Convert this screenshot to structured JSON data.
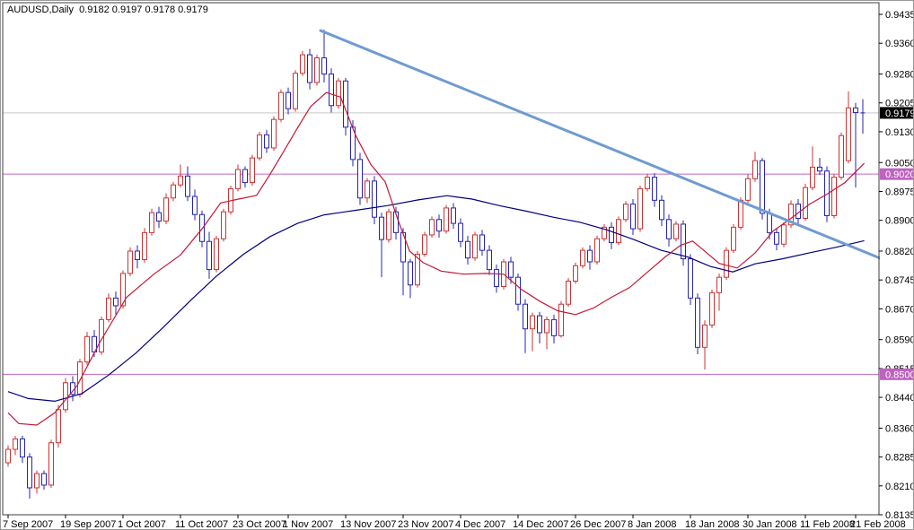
{
  "window": {
    "title": "AUDUSD,Daily  0.9182 0.9197 0.9178 0.9179"
  },
  "colors": {
    "background": "#ffffff",
    "frame": "#3c3c3c",
    "axis_text": "#000000",
    "bull_candle": "#cc3333",
    "bear_candle": "#2424b4",
    "ma_fast": "#c41836",
    "ma_slow": "#000080",
    "trendline": "#6f9bd1",
    "current_price_line": "#c8c8c8",
    "hline": "#c066c0",
    "price_tag_bg": "#000000",
    "price_tag_text": "#ffffff",
    "hline_tag_bg": "#be63be",
    "hline_tag_text": "#ffffff"
  },
  "chart_data": {
    "type": "candlestick",
    "symbol": "AUDUSD",
    "timeframe": "Daily",
    "quote_readout": {
      "open": "0.9182",
      "high": "0.9197",
      "low": "0.9178",
      "close": "0.9179"
    },
    "price_axis": {
      "max": 0.947,
      "min": 0.8135,
      "ticks": [
        0.9435,
        0.936,
        0.928,
        0.9205,
        0.913,
        0.905,
        0.8975,
        0.89,
        0.882,
        0.8745,
        0.867,
        0.859,
        0.8515,
        0.844,
        0.836,
        0.8285,
        0.821,
        0.8135
      ]
    },
    "time_axis": {
      "labels": [
        {
          "text": "7 Sep 2007",
          "day": 0
        },
        {
          "text": "19 Sep 2007",
          "day": 8
        },
        {
          "text": "1 Oct 2007",
          "day": 16
        },
        {
          "text": "11 Oct 2007",
          "day": 24
        },
        {
          "text": "23 Oct 2007",
          "day": 32
        },
        {
          "text": "1 Nov 2007",
          "day": 39
        },
        {
          "text": "13 Nov 2007",
          "day": 47
        },
        {
          "text": "23 Nov 2007",
          "day": 55
        },
        {
          "text": "4 Dec 2007",
          "day": 63
        },
        {
          "text": "14 Dec 2007",
          "day": 71
        },
        {
          "text": "26 Dec 2007",
          "day": 79
        },
        {
          "text": "8 Jan 2008",
          "day": 87
        },
        {
          "text": "18 Jan 2008",
          "day": 95
        },
        {
          "text": "30 Jan 2008",
          "day": 103
        },
        {
          "text": "11 Feb 2008",
          "day": 111
        },
        {
          "text": "21 Feb 2008",
          "day": 118
        }
      ]
    },
    "current_price": {
      "value": 0.9179,
      "label": "0.9179"
    },
    "hlines": [
      {
        "price": 0.902,
        "label": "0.9020"
      },
      {
        "price": 0.85,
        "label": "0.8500"
      }
    ],
    "trendline": {
      "from": {
        "day": 43.5,
        "price": 0.9393
      },
      "to": {
        "day": 122,
        "price": 0.8797
      }
    },
    "candles": [
      [
        0.827,
        0.8315,
        0.826,
        0.8305
      ],
      [
        0.8305,
        0.834,
        0.829,
        0.8332
      ],
      [
        0.8332,
        0.834,
        0.827,
        0.8285
      ],
      [
        0.8285,
        0.8295,
        0.8177,
        0.8205
      ],
      [
        0.8205,
        0.825,
        0.819,
        0.8242
      ],
      [
        0.8242,
        0.825,
        0.82,
        0.8212
      ],
      [
        0.8212,
        0.833,
        0.8205,
        0.8322
      ],
      [
        0.8322,
        0.842,
        0.831,
        0.8408
      ],
      [
        0.8408,
        0.849,
        0.84,
        0.8478
      ],
      [
        0.8478,
        0.8495,
        0.843,
        0.8448
      ],
      [
        0.8448,
        0.854,
        0.844,
        0.8532
      ],
      [
        0.8532,
        0.861,
        0.8525,
        0.8598
      ],
      [
        0.8598,
        0.8615,
        0.8545,
        0.8558
      ],
      [
        0.8558,
        0.865,
        0.855,
        0.8642
      ],
      [
        0.8642,
        0.871,
        0.8635,
        0.8698
      ],
      [
        0.8698,
        0.8715,
        0.8655,
        0.8678
      ],
      [
        0.8678,
        0.877,
        0.867,
        0.8762
      ],
      [
        0.8762,
        0.883,
        0.8755,
        0.882
      ],
      [
        0.882,
        0.8835,
        0.8775,
        0.8798
      ],
      [
        0.8798,
        0.888,
        0.879,
        0.8868
      ],
      [
        0.8868,
        0.893,
        0.886,
        0.892
      ],
      [
        0.892,
        0.8935,
        0.888,
        0.8898
      ],
      [
        0.8898,
        0.897,
        0.889,
        0.8958
      ],
      [
        0.8958,
        0.9,
        0.895,
        0.8992
      ],
      [
        0.8992,
        0.9045,
        0.8985,
        0.9015
      ],
      [
        0.9015,
        0.904,
        0.895,
        0.8962
      ],
      [
        0.8962,
        0.898,
        0.89,
        0.8915
      ],
      [
        0.8915,
        0.8925,
        0.883,
        0.8845
      ],
      [
        0.8845,
        0.887,
        0.8748,
        0.8772
      ],
      [
        0.8772,
        0.886,
        0.8765,
        0.8852
      ],
      [
        0.8852,
        0.893,
        0.8845,
        0.8922
      ],
      [
        0.8922,
        0.899,
        0.8915,
        0.8982
      ],
      [
        0.8982,
        0.9045,
        0.8975,
        0.9032
      ],
      [
        0.9032,
        0.904,
        0.8985,
        0.8998
      ],
      [
        0.8998,
        0.907,
        0.899,
        0.9062
      ],
      [
        0.9062,
        0.913,
        0.9055,
        0.9122
      ],
      [
        0.9122,
        0.9135,
        0.9075,
        0.9088
      ],
      [
        0.9088,
        0.917,
        0.908,
        0.9162
      ],
      [
        0.9162,
        0.924,
        0.9155,
        0.9232
      ],
      [
        0.9232,
        0.9245,
        0.9175,
        0.919
      ],
      [
        0.919,
        0.929,
        0.9182,
        0.9282
      ],
      [
        0.9282,
        0.934,
        0.9275,
        0.933
      ],
      [
        0.933,
        0.9345,
        0.924,
        0.9258
      ],
      [
        0.9258,
        0.933,
        0.925,
        0.9322
      ],
      [
        0.9322,
        0.9395,
        0.9258,
        0.928
      ],
      [
        0.928,
        0.9295,
        0.918,
        0.9198
      ],
      [
        0.9198,
        0.927,
        0.919,
        0.9262
      ],
      [
        0.9262,
        0.927,
        0.912,
        0.9142
      ],
      [
        0.9142,
        0.916,
        0.904,
        0.9058
      ],
      [
        0.9058,
        0.9075,
        0.894,
        0.8958
      ],
      [
        0.8958,
        0.901,
        0.8945,
        0.9002
      ],
      [
        0.9002,
        0.9015,
        0.889,
        0.8908
      ],
      [
        0.8908,
        0.892,
        0.8752,
        0.885
      ],
      [
        0.885,
        0.893,
        0.8842,
        0.8922
      ],
      [
        0.8922,
        0.8935,
        0.885,
        0.8868
      ],
      [
        0.8868,
        0.888,
        0.8705,
        0.8792
      ],
      [
        0.8792,
        0.88,
        0.8698,
        0.8732
      ],
      [
        0.8732,
        0.882,
        0.8725,
        0.8812
      ],
      [
        0.8812,
        0.887,
        0.8805,
        0.8862
      ],
      [
        0.8862,
        0.891,
        0.8855,
        0.8902
      ],
      [
        0.8902,
        0.8915,
        0.8855,
        0.8872
      ],
      [
        0.8872,
        0.894,
        0.8865,
        0.8932
      ],
      [
        0.8932,
        0.8945,
        0.8878,
        0.8892
      ],
      [
        0.8892,
        0.8905,
        0.883,
        0.8845
      ],
      [
        0.8845,
        0.886,
        0.8785,
        0.8802
      ],
      [
        0.8802,
        0.887,
        0.8795,
        0.8862
      ],
      [
        0.8862,
        0.8875,
        0.8808,
        0.8822
      ],
      [
        0.8822,
        0.8835,
        0.8758,
        0.8772
      ],
      [
        0.8772,
        0.8785,
        0.8712,
        0.8728
      ],
      [
        0.8728,
        0.88,
        0.872,
        0.8792
      ],
      [
        0.8792,
        0.8805,
        0.8735,
        0.8752
      ],
      [
        0.8752,
        0.8762,
        0.8665,
        0.8682
      ],
      [
        0.8682,
        0.8695,
        0.8555,
        0.8618
      ],
      [
        0.8618,
        0.866,
        0.856,
        0.8652
      ],
      [
        0.8652,
        0.8662,
        0.858,
        0.8608
      ],
      [
        0.8608,
        0.865,
        0.8565,
        0.8642
      ],
      [
        0.8642,
        0.8655,
        0.858,
        0.86
      ],
      [
        0.86,
        0.869,
        0.8595,
        0.8682
      ],
      [
        0.8682,
        0.875,
        0.8675,
        0.8742
      ],
      [
        0.8742,
        0.879,
        0.8735,
        0.8782
      ],
      [
        0.8782,
        0.883,
        0.8775,
        0.8822
      ],
      [
        0.8822,
        0.8835,
        0.8772,
        0.8792
      ],
      [
        0.8792,
        0.886,
        0.8785,
        0.8852
      ],
      [
        0.8852,
        0.889,
        0.8845,
        0.8882
      ],
      [
        0.8882,
        0.8895,
        0.8825,
        0.8842
      ],
      [
        0.8842,
        0.891,
        0.8835,
        0.8902
      ],
      [
        0.8902,
        0.895,
        0.8895,
        0.8942
      ],
      [
        0.8942,
        0.8955,
        0.8862,
        0.8878
      ],
      [
        0.8878,
        0.899,
        0.887,
        0.8982
      ],
      [
        0.8982,
        0.902,
        0.8975,
        0.9012
      ],
      [
        0.9012,
        0.9022,
        0.8935,
        0.8952
      ],
      [
        0.8952,
        0.8965,
        0.8885,
        0.8902
      ],
      [
        0.8902,
        0.8915,
        0.8832,
        0.8852
      ],
      [
        0.8852,
        0.8898,
        0.8845,
        0.889
      ],
      [
        0.889,
        0.89,
        0.8782,
        0.88
      ],
      [
        0.88,
        0.8812,
        0.868,
        0.8698
      ],
      [
        0.8698,
        0.871,
        0.8552,
        0.857
      ],
      [
        0.857,
        0.864,
        0.8512,
        0.8628
      ],
      [
        0.8628,
        0.872,
        0.862,
        0.8712
      ],
      [
        0.8712,
        0.8762,
        0.8665,
        0.8752
      ],
      [
        0.8752,
        0.883,
        0.8745,
        0.8822
      ],
      [
        0.8822,
        0.889,
        0.8815,
        0.8882
      ],
      [
        0.8882,
        0.896,
        0.8875,
        0.8952
      ],
      [
        0.8952,
        0.902,
        0.8945,
        0.9008
      ],
      [
        0.9008,
        0.9078,
        0.9,
        0.9055
      ],
      [
        0.9055,
        0.9062,
        0.8902,
        0.8918
      ],
      [
        0.8918,
        0.893,
        0.885,
        0.8868
      ],
      [
        0.8868,
        0.888,
        0.8822,
        0.8838
      ],
      [
        0.8838,
        0.8895,
        0.883,
        0.8888
      ],
      [
        0.8888,
        0.8952,
        0.888,
        0.8942
      ],
      [
        0.8942,
        0.8955,
        0.889,
        0.8905
      ],
      [
        0.8905,
        0.8995,
        0.8898,
        0.8985
      ],
      [
        0.8985,
        0.9092,
        0.8978,
        0.9038
      ],
      [
        0.9038,
        0.9062,
        0.9018,
        0.9028
      ],
      [
        0.9028,
        0.904,
        0.8895,
        0.8912
      ],
      [
        0.8912,
        0.902,
        0.8905,
        0.9012
      ],
      [
        0.9012,
        0.9128,
        0.9005,
        0.912
      ],
      [
        0.9055,
        0.9235,
        0.9048,
        0.9192
      ],
      [
        0.9192,
        0.9205,
        0.8985,
        0.918
      ],
      [
        0.918,
        0.9215,
        0.9125,
        0.9179
      ]
    ],
    "ma_fast_points": [
      [
        0,
        0.84
      ],
      [
        1.5,
        0.8372
      ],
      [
        4,
        0.8368
      ],
      [
        6.5,
        0.84
      ],
      [
        9.6,
        0.847
      ],
      [
        12.8,
        0.8584
      ],
      [
        16.5,
        0.87
      ],
      [
        20.3,
        0.876
      ],
      [
        24,
        0.881
      ],
      [
        27.1,
        0.888
      ],
      [
        29.6,
        0.8945
      ],
      [
        32.1,
        0.8955
      ],
      [
        34.6,
        0.8965
      ],
      [
        36.5,
        0.902
      ],
      [
        38.4,
        0.908
      ],
      [
        40.3,
        0.914
      ],
      [
        42.1,
        0.9195
      ],
      [
        44.3,
        0.9232
      ],
      [
        46.3,
        0.922
      ],
      [
        48.4,
        0.912
      ],
      [
        50.5,
        0.9045
      ],
      [
        52.5,
        0.9
      ],
      [
        54.3,
        0.89
      ],
      [
        55.9,
        0.882
      ],
      [
        57.8,
        0.879
      ],
      [
        60.3,
        0.8768
      ],
      [
        63.4,
        0.876
      ],
      [
        66.5,
        0.8762
      ],
      [
        69,
        0.876
      ],
      [
        71.5,
        0.872
      ],
      [
        74,
        0.869
      ],
      [
        76.5,
        0.8665
      ],
      [
        79,
        0.8655
      ],
      [
        81.5,
        0.8672
      ],
      [
        84,
        0.87
      ],
      [
        86.5,
        0.8725
      ],
      [
        89,
        0.8765
      ],
      [
        91.5,
        0.8805
      ],
      [
        93.6,
        0.8835
      ],
      [
        95.3,
        0.8846
      ],
      [
        97.1,
        0.8818
      ],
      [
        99,
        0.8788
      ],
      [
        101.5,
        0.8776
      ],
      [
        104,
        0.8815
      ],
      [
        106.5,
        0.8872
      ],
      [
        109,
        0.8905
      ],
      [
        111.5,
        0.8941
      ],
      [
        114,
        0.8968
      ],
      [
        116.5,
        0.8998
      ],
      [
        119.2,
        0.9048
      ]
    ],
    "ma_slow_points": [
      [
        0,
        0.8455
      ],
      [
        2.8,
        0.8437
      ],
      [
        6.5,
        0.843
      ],
      [
        10.3,
        0.845
      ],
      [
        14,
        0.8498
      ],
      [
        17.8,
        0.8555
      ],
      [
        21.5,
        0.862
      ],
      [
        25.3,
        0.869
      ],
      [
        29,
        0.8755
      ],
      [
        32.8,
        0.8812
      ],
      [
        36.5,
        0.8858
      ],
      [
        40.3,
        0.8892
      ],
      [
        44,
        0.8914
      ],
      [
        48.4,
        0.8926
      ],
      [
        52.8,
        0.8938
      ],
      [
        57.1,
        0.8953
      ],
      [
        61.1,
        0.8964
      ],
      [
        64.6,
        0.8955
      ],
      [
        68.4,
        0.8938
      ],
      [
        72.1,
        0.8924
      ],
      [
        75.9,
        0.8908
      ],
      [
        79.6,
        0.8895
      ],
      [
        83.4,
        0.8875
      ],
      [
        87.1,
        0.885
      ],
      [
        90.9,
        0.8822
      ],
      [
        94.6,
        0.8805
      ],
      [
        97.8,
        0.878
      ],
      [
        100.9,
        0.8766
      ],
      [
        104,
        0.8787
      ],
      [
        107.8,
        0.88
      ],
      [
        111.5,
        0.8815
      ],
      [
        115.3,
        0.883
      ],
      [
        119.2,
        0.8847
      ]
    ]
  }
}
